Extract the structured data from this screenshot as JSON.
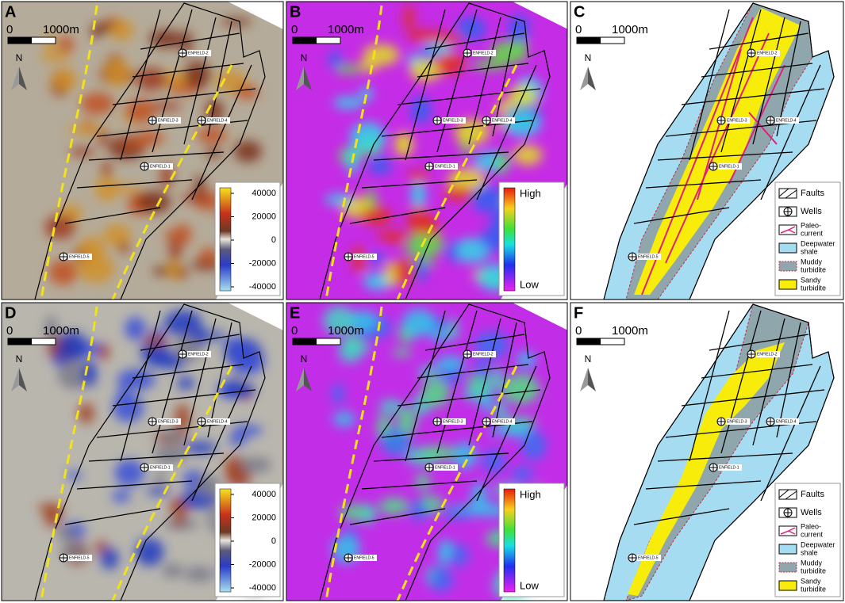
{
  "panels": [
    {
      "letter": "A",
      "scale": {
        "zero": "0",
        "length": "1000m"
      },
      "north": "N",
      "wells": [
        "ENFIELD-2",
        "ENFIELD-3",
        "ENFIELD-4",
        "ENFIELD-1",
        "ENFIELD-5"
      ],
      "colorbar": {
        "ticks": [
          40000,
          20000,
          0,
          -20000,
          -40000
        ]
      }
    },
    {
      "letter": "B",
      "scale": {
        "zero": "0",
        "length": "1000m"
      },
      "north": "N",
      "wells": [
        "ENFIELD-2",
        "ENFIELD-3",
        "ENFIELD-4",
        "ENFIELD-1",
        "ENFIELD-5"
      ],
      "colorbar": {
        "high": "High",
        "low": "Low"
      }
    },
    {
      "letter": "C",
      "scale": {
        "zero": "0",
        "length": "1000m"
      },
      "north": "N",
      "wells": [
        "ENFIELD-2",
        "ENFIELD-3",
        "ENFIELD-4",
        "ENFIELD-1",
        "ENFIELD-5"
      ],
      "legend": [
        [
          "Faults"
        ],
        [
          "Wells"
        ],
        [
          "Paleo-",
          "current"
        ],
        [
          "Deepwater",
          "shale"
        ],
        [
          "Muddy",
          "turbidite"
        ],
        [
          "Sandy",
          "turbidite"
        ]
      ]
    },
    {
      "letter": "D",
      "scale": {
        "zero": "0",
        "length": "1000m"
      },
      "north": "N",
      "wells": [
        "ENFIELD-2",
        "ENFIELD-3",
        "ENFIELD-4",
        "ENFIELD-1",
        "ENFIELD-5"
      ],
      "colorbar": {
        "ticks": [
          40000,
          20000,
          0,
          -20000,
          -40000
        ]
      }
    },
    {
      "letter": "E",
      "scale": {
        "zero": "0",
        "length": "1000m"
      },
      "north": "N",
      "wells": [
        "ENFIELD-2",
        "ENFIELD-3",
        "ENFIELD-4",
        "ENFIELD-1",
        "ENFIELD-5"
      ],
      "colorbar": {
        "high": "High",
        "low": "Low"
      }
    },
    {
      "letter": "F",
      "scale": {
        "zero": "0",
        "length": "1000m"
      },
      "north": "N",
      "wells": [
        "ENFIELD-2",
        "ENFIELD-3",
        "ENFIELD-4",
        "ENFIELD-1",
        "ENFIELD-5"
      ],
      "legend": [
        [
          "Faults"
        ],
        [
          "Wells"
        ],
        [
          "Paleo-",
          "current"
        ],
        [
          "Deepwater",
          "shale"
        ],
        [
          "Muddy",
          "turbidite"
        ],
        [
          "Sandy",
          "turbidite"
        ]
      ]
    }
  ]
}
